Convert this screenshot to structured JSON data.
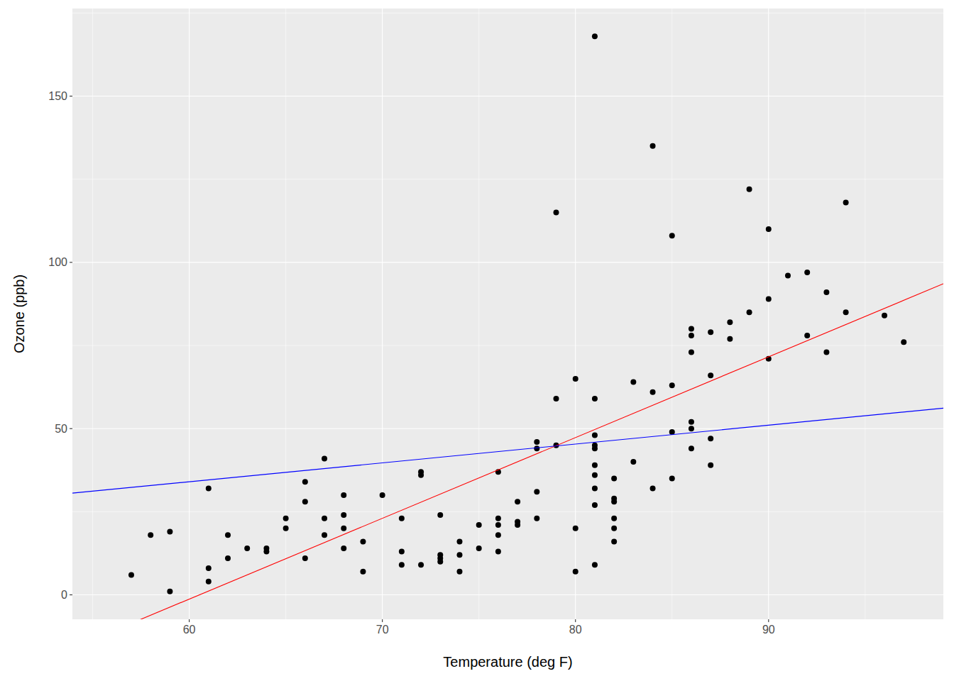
{
  "chart_data": {
    "type": "scatter",
    "x_label": "Temperature (deg F)",
    "y_label": "Ozone (ppb)",
    "xlim": [
      53.95,
      99.05
    ],
    "ylim": [
      -7.35,
      176.35
    ],
    "xticks": [
      60,
      70,
      80,
      90
    ],
    "yticks": [
      0,
      50,
      100,
      150
    ],
    "grid": true,
    "color": "#000000",
    "marker": "circle",
    "x": [
      57,
      58,
      59,
      59,
      61,
      61,
      61,
      62,
      62,
      63,
      64,
      64,
      65,
      65,
      66,
      66,
      66,
      67,
      67,
      67,
      68,
      68,
      68,
      68,
      69,
      69,
      70,
      71,
      71,
      71,
      72,
      72,
      72,
      73,
      73,
      73,
      73,
      74,
      74,
      74,
      75,
      75,
      76,
      76,
      76,
      76,
      76,
      77,
      77,
      77,
      78,
      78,
      78,
      78,
      79,
      79,
      79,
      80,
      80,
      80,
      81,
      81,
      81,
      81,
      81,
      81,
      81,
      81,
      81,
      81,
      82,
      82,
      82,
      82,
      82,
      82,
      83,
      83,
      84,
      84,
      84,
      85,
      85,
      85,
      85,
      86,
      86,
      86,
      86,
      86,
      86,
      87,
      87,
      87,
      87,
      88,
      88,
      89,
      89,
      90,
      90,
      90,
      91,
      92,
      92,
      93,
      93,
      94,
      94,
      96,
      97
    ],
    "values": [
      6,
      18,
      19,
      1,
      32,
      8,
      4,
      18,
      11,
      14,
      14,
      13,
      23,
      20,
      34,
      28,
      11,
      41,
      23,
      18,
      30,
      24,
      20,
      14,
      16,
      7,
      30,
      23,
      13,
      9,
      37,
      36,
      9,
      24,
      12,
      11,
      10,
      16,
      12,
      7,
      21,
      14,
      37,
      23,
      21,
      18,
      13,
      28,
      22,
      21,
      46,
      44,
      31,
      23,
      115,
      59,
      45,
      65,
      20,
      7,
      168,
      59,
      48,
      45,
      44,
      39,
      36,
      32,
      27,
      9,
      35,
      29,
      28,
      23,
      20,
      16,
      64,
      40,
      135,
      61,
      32,
      108,
      63,
      49,
      35,
      80,
      78,
      73,
      52,
      50,
      44,
      79,
      66,
      47,
      39,
      82,
      77,
      122,
      85,
      110,
      89,
      71,
      96,
      97,
      78,
      91,
      73,
      118,
      85,
      84,
      76
    ],
    "lines": [
      {
        "type": "line",
        "color": "#FF0000",
        "intercept": -146.995,
        "slope": 2.4287
      },
      {
        "type": "line",
        "color": "#0000FF",
        "intercept": 0,
        "slope": 0.567
      }
    ]
  }
}
